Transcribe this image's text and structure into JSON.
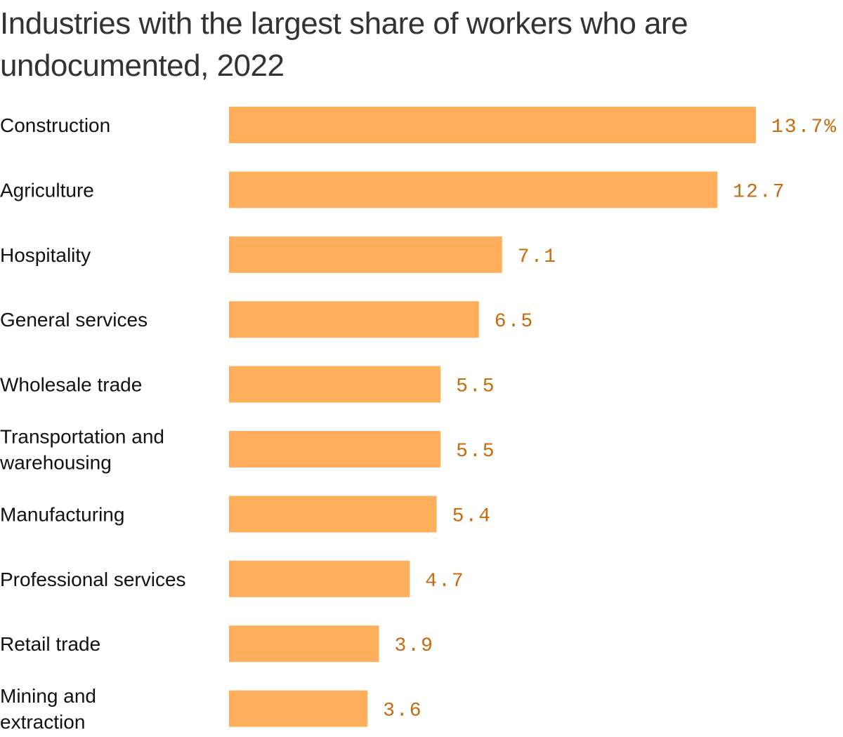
{
  "colors": {
    "bar": "#ffae5c",
    "value_text": "#c86a0b",
    "title_text": "#333333",
    "label_text": "#111111"
  },
  "chart_data": {
    "type": "bar",
    "orientation": "horizontal",
    "title": "Industries with the largest share of workers who are undocumented, 2022",
    "xlabel": "",
    "ylabel": "",
    "value_unit": "%",
    "xlim": [
      0,
      13.7
    ],
    "grid": false,
    "legend": "none",
    "categories": [
      [
        "Construction"
      ],
      [
        "Agriculture"
      ],
      [
        "Hospitality"
      ],
      [
        "General services"
      ],
      [
        "Wholesale trade"
      ],
      [
        "Transportation and",
        "warehousing"
      ],
      [
        "Manufacturing"
      ],
      [
        "Professional services"
      ],
      [
        "Retail trade"
      ],
      [
        "Mining and",
        "extraction"
      ]
    ],
    "values": [
      13.7,
      12.7,
      7.1,
      6.5,
      5.5,
      5.5,
      5.4,
      4.7,
      3.9,
      3.6
    ],
    "value_labels": [
      "13.7%",
      "12.7",
      "7.1",
      "6.5",
      "5.5",
      "5.5",
      "5.4",
      "4.7",
      "3.9",
      "3.6"
    ]
  }
}
